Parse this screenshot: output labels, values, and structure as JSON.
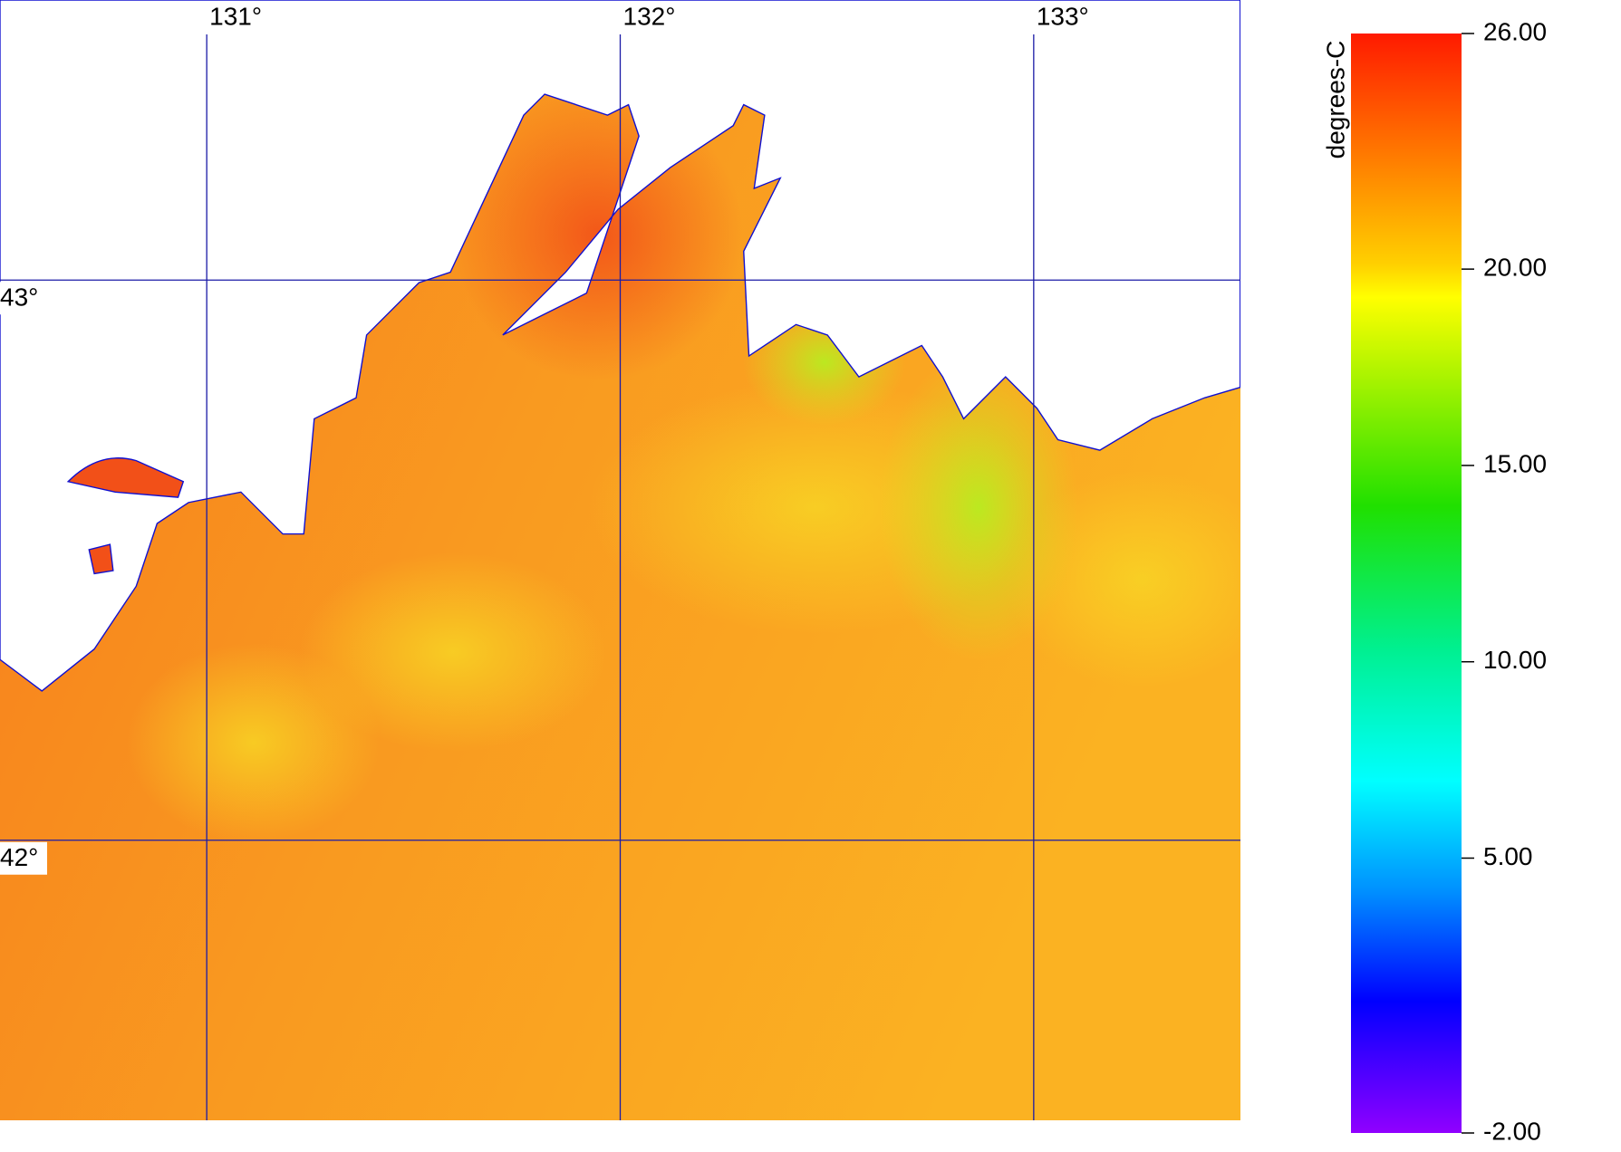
{
  "map": {
    "xlim": [
      130.5,
      133.5
    ],
    "ylim": [
      41.5,
      43.5
    ],
    "lon_ticks": [
      {
        "value": 131,
        "label": "131°"
      },
      {
        "value": 132,
        "label": "132°"
      },
      {
        "value": 133,
        "label": "133°"
      }
    ],
    "lat_ticks": [
      {
        "value": 43,
        "label": "43°"
      },
      {
        "value": 42,
        "label": "42°"
      }
    ],
    "colorbar": {
      "label": "degrees-C",
      "range": [
        -2,
        26
      ],
      "ticks": [
        {
          "value": 26,
          "label": "26.00"
        },
        {
          "value": 20,
          "label": "20.00"
        },
        {
          "value": 15,
          "label": "15.00"
        },
        {
          "value": 10,
          "label": "10.00"
        },
        {
          "value": 5,
          "label": "5.00"
        },
        {
          "value": -2,
          "label": "-2.00"
        }
      ]
    }
  }
}
